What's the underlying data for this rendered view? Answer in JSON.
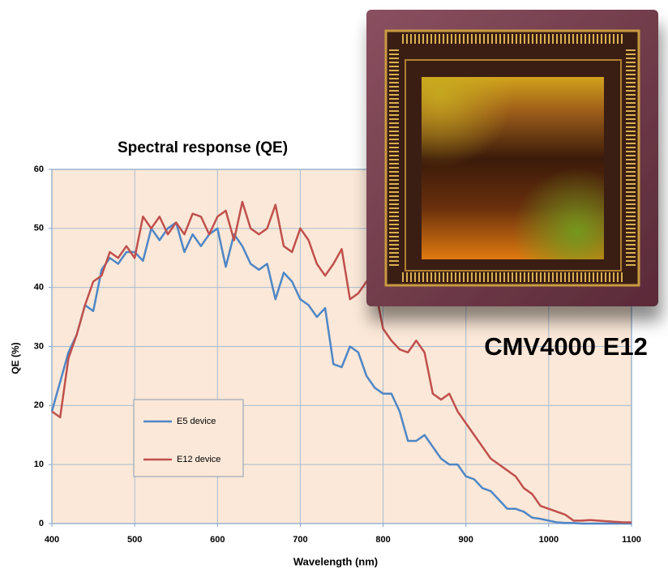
{
  "chart_data": {
    "type": "line",
    "title": "Spectral response (QE)",
    "x_label": "Wavelength (nm)",
    "y_label": "QE (%)",
    "annotation": "CMV4000 E12",
    "x": [
      400,
      410,
      420,
      430,
      440,
      450,
      460,
      470,
      480,
      490,
      500,
      510,
      520,
      530,
      540,
      550,
      560,
      570,
      580,
      590,
      600,
      610,
      620,
      630,
      640,
      650,
      660,
      670,
      680,
      690,
      700,
      710,
      720,
      730,
      740,
      750,
      760,
      770,
      780,
      790,
      800,
      810,
      820,
      830,
      840,
      850,
      860,
      870,
      880,
      890,
      900,
      910,
      920,
      930,
      940,
      950,
      960,
      970,
      980,
      990,
      1000,
      1010,
      1020,
      1030,
      1040,
      1050,
      1060,
      1070,
      1080,
      1090,
      1100
    ],
    "series": [
      {
        "name": "E5 device",
        "color": "#4f86c6",
        "values": [
          19,
          24,
          29,
          32,
          37,
          36,
          43,
          45,
          44,
          46,
          46,
          44.5,
          50,
          48,
          50,
          51,
          46,
          49,
          47,
          49,
          50,
          43.5,
          49,
          47,
          44,
          43,
          44,
          38,
          42.5,
          41,
          38,
          37,
          35,
          36.5,
          27,
          26.5,
          30,
          29,
          25,
          23,
          22,
          22,
          19,
          14,
          14,
          15,
          13,
          11,
          10,
          10,
          8,
          7.5,
          6,
          5.5,
          4,
          2.5,
          2.5,
          2,
          1,
          0.8,
          0.5,
          0.2,
          0.1,
          0.1,
          0,
          0,
          0,
          0,
          0,
          0,
          0
        ]
      },
      {
        "name": "E12 device",
        "color": "#c0504d",
        "values": [
          19,
          18,
          28,
          32,
          37,
          41,
          42,
          46,
          45,
          47,
          45,
          52,
          50,
          52,
          49,
          51,
          49,
          52.5,
          52,
          49,
          52,
          53,
          48,
          54.5,
          50,
          49,
          50,
          54,
          47,
          46,
          50,
          48,
          44,
          42,
          44,
          46.5,
          38,
          39,
          41,
          40,
          33,
          31,
          29.5,
          29,
          31,
          29,
          22,
          21,
          22,
          19,
          17,
          15,
          13,
          11,
          10,
          9,
          8,
          6,
          5,
          3,
          2.5,
          2,
          1.5,
          0.5,
          0.5,
          0.6,
          0.5,
          0.4,
          0.3,
          0.2,
          0.2
        ]
      }
    ],
    "xlim": [
      400,
      1100
    ],
    "ylim": [
      0,
      60
    ],
    "xticks": [
      400,
      500,
      600,
      700,
      800,
      900,
      1000,
      1100
    ],
    "yticks": [
      0,
      10,
      20,
      30,
      40,
      50,
      60
    ],
    "grid": true,
    "legend": "lower left"
  }
}
